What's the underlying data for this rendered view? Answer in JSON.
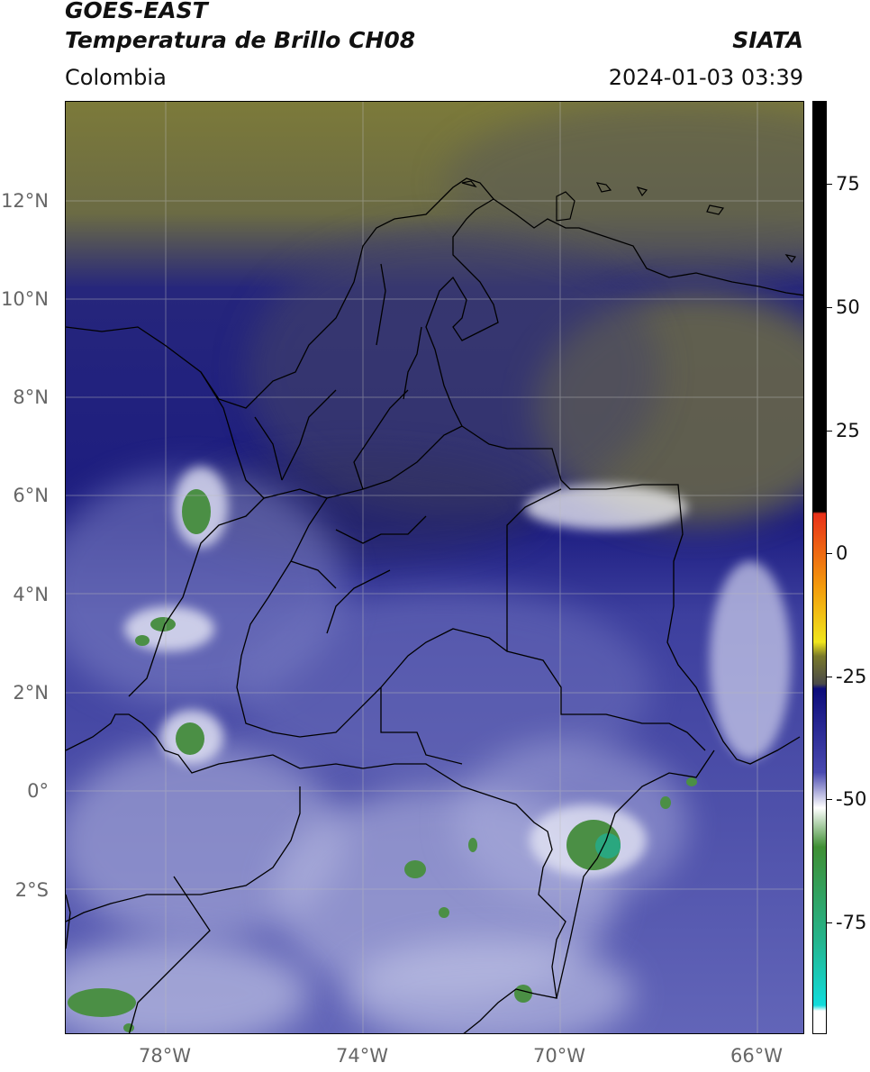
{
  "header": {
    "title_line1": "GOES-EAST",
    "title_line2": "Temperatura de Brillo CH08",
    "agency": "SIATA",
    "region": "Colombia",
    "timestamp": "2024-01-03 03:39"
  },
  "axes": {
    "lat_ticks": [
      "12°N",
      "10°N",
      "8°N",
      "6°N",
      "4°N",
      "2°N",
      "0°",
      "2°S"
    ],
    "lon_ticks": [
      "78°W",
      "74°W",
      "70°W",
      "66°W"
    ]
  },
  "colorbar": {
    "tick_labels": [
      "75",
      "50",
      "25",
      "0",
      "-25",
      "-50",
      "-75"
    ],
    "colors": {
      "warm_limit": "#000000",
      "red": "#e8301a",
      "orange": "#f39a0c",
      "yellow": "#f0e51c",
      "olive": "#7a7a2a",
      "gray": "#4a4a4a",
      "navy": "#0c0c7a",
      "blue": "#4a4ab0",
      "white": "#ffffff",
      "green": "#3f8f34",
      "teal": "#25b48c",
      "cyan": "#11dcdc"
    }
  },
  "map_colors": {
    "olive_dry": "#7c7a3a",
    "gray_dry": "#5a5a5a",
    "navy_moist": "#1e1e86",
    "blue_moist": "#4b4fae",
    "light_cloud": "#c9cbe6",
    "cold_green": "#4b8f45",
    "teal_core": "#2aa77f"
  }
}
